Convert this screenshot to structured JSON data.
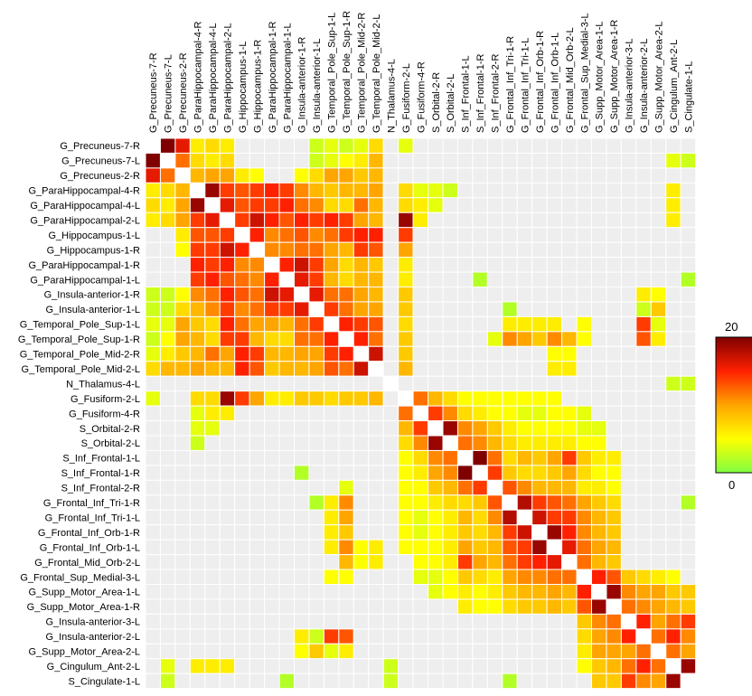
{
  "chart_data": {
    "type": "heatmap",
    "labels": [
      "G_Precuneus-7-R",
      "G_Precuneus-7-L",
      "G_Precuneus-2-R",
      "G_ParaHippocampal-4-R",
      "G_ParaHippocampal-4-L",
      "G_ParaHippocampal-2-L",
      "G_Hippocampus-1-L",
      "G_Hippocampus-1-R",
      "G_ParaHippocampal-1-R",
      "G_ParaHippocampal-1-L",
      "G_Insula-anterior-1-R",
      "G_Insula-anterior-1-L",
      "G_Temporal_Pole_Sup-1-L",
      "G_Temporal_Pole_Sup-1-R",
      "G_Temporal_Pole_Mid-2-R",
      "G_Temporal_Pole_Mid-2-L",
      "N_Thalamus-4-L",
      "G_Fusiform-2-L",
      "G_Fusiform-4-R",
      "S_Orbital-2-R",
      "S_Orbital-2-L",
      "S_Inf_Frontal-1-L",
      "S_Inf_Frontal-1-R",
      "S_Inf_Frontal-2-R",
      "G_Frontal_Inf_Tri-1-R",
      "G_Frontal_Inf_Tri-1-L",
      "G_Frontal_Inf_Orb-1-R",
      "G_Frontal_Inf_Orb-1-L",
      "G_Frontal_Mid_Orb-2-L",
      "G_Frontal_Sup_Medial-3-L",
      "G_Supp_Motor_Area-1-L",
      "G_Supp_Motor_Area-1-R",
      "G_Insula-anterior-3-L",
      "G_Insula-anterior-2-L",
      "G_Supp_Motor_Area-2-L",
      "G_Cingulum_Ant-2-L",
      "S_Cingulate-1-L"
    ],
    "colorbar": {
      "min": 0,
      "max": 20,
      "min_label": "0",
      "max_label": "20"
    },
    "colormap": [
      "#7fff3f",
      "#ffff00",
      "#ffa500",
      "#ff2000",
      "#800000"
    ],
    "diagonal_color": "#ffffff",
    "missing_color": "#eeeeee",
    "matrix": [
      [
        0,
        20,
        16,
        6,
        7,
        6,
        0,
        0,
        0,
        0,
        0,
        3,
        4,
        3,
        4,
        7,
        0,
        4,
        0,
        0,
        0,
        0,
        0,
        0,
        0,
        0,
        0,
        0,
        0,
        0,
        0,
        0,
        0,
        0,
        0,
        0,
        0
      ],
      [
        20,
        0,
        12,
        7,
        6,
        7,
        0,
        0,
        0,
        0,
        0,
        3,
        4,
        5,
        6,
        9,
        0,
        0,
        0,
        0,
        0,
        0,
        0,
        0,
        0,
        0,
        0,
        0,
        0,
        0,
        0,
        0,
        0,
        0,
        0,
        4,
        3
      ],
      [
        16,
        12,
        0,
        9,
        10,
        10,
        6,
        5,
        0,
        0,
        5,
        7,
        10,
        10,
        8,
        9,
        0,
        0,
        0,
        0,
        0,
        0,
        0,
        0,
        0,
        0,
        0,
        0,
        0,
        0,
        0,
        0,
        0,
        0,
        0,
        0,
        0
      ],
      [
        6,
        7,
        9,
        0,
        19,
        14,
        13,
        14,
        15,
        14,
        11,
        9,
        8,
        9,
        9,
        10,
        0,
        7,
        4,
        4,
        3,
        0,
        0,
        0,
        0,
        0,
        0,
        0,
        0,
        0,
        0,
        0,
        0,
        0,
        0,
        6,
        0
      ],
      [
        7,
        6,
        10,
        19,
        0,
        16,
        13,
        14,
        14,
        15,
        12,
        11,
        7,
        7,
        12,
        9,
        0,
        7,
        6,
        4,
        0,
        0,
        0,
        0,
        0,
        0,
        0,
        0,
        0,
        0,
        0,
        0,
        0,
        0,
        0,
        6,
        0
      ],
      [
        6,
        7,
        10,
        14,
        16,
        0,
        14,
        17,
        15,
        13,
        15,
        14,
        15,
        14,
        10,
        9,
        0,
        19,
        6,
        0,
        0,
        0,
        0,
        0,
        0,
        0,
        0,
        0,
        0,
        0,
        0,
        0,
        0,
        0,
        0,
        6,
        0
      ],
      [
        0,
        0,
        6,
        13,
        13,
        14,
        0,
        15,
        11,
        12,
        13,
        11,
        12,
        14,
        15,
        15,
        0,
        14,
        0,
        0,
        0,
        0,
        0,
        0,
        0,
        0,
        0,
        0,
        0,
        0,
        0,
        0,
        0,
        0,
        0,
        0,
        0
      ],
      [
        0,
        0,
        5,
        14,
        14,
        17,
        15,
        0,
        11,
        11,
        12,
        12,
        10,
        9,
        14,
        13,
        0,
        10,
        0,
        0,
        0,
        0,
        0,
        0,
        0,
        0,
        0,
        0,
        0,
        0,
        0,
        0,
        0,
        0,
        0,
        0,
        0
      ],
      [
        0,
        0,
        0,
        15,
        14,
        15,
        11,
        11,
        0,
        15,
        17,
        14,
        10,
        7,
        9,
        8,
        0,
        6,
        0,
        0,
        0,
        0,
        0,
        0,
        0,
        0,
        0,
        0,
        0,
        0,
        0,
        0,
        0,
        0,
        0,
        0,
        0
      ],
      [
        0,
        0,
        0,
        14,
        15,
        13,
        12,
        11,
        15,
        0,
        16,
        14,
        9,
        7,
        9,
        9,
        0,
        6,
        0,
        0,
        0,
        0,
        2,
        0,
        0,
        0,
        0,
        0,
        0,
        0,
        0,
        0,
        0,
        0,
        0,
        0,
        2
      ],
      [
        3,
        3,
        5,
        11,
        12,
        15,
        13,
        12,
        17,
        16,
        0,
        16,
        12,
        12,
        10,
        9,
        0,
        8,
        0,
        0,
        0,
        0,
        0,
        0,
        0,
        0,
        0,
        0,
        0,
        0,
        0,
        0,
        0,
        6,
        5,
        0,
        0
      ],
      [
        3,
        3,
        7,
        9,
        11,
        14,
        11,
        12,
        14,
        14,
        16,
        0,
        14,
        12,
        10,
        10,
        0,
        8,
        0,
        0,
        0,
        0,
        0,
        0,
        2,
        0,
        0,
        0,
        0,
        0,
        0,
        0,
        0,
        3,
        8,
        0,
        0
      ],
      [
        4,
        4,
        10,
        8,
        7,
        15,
        12,
        10,
        10,
        9,
        12,
        14,
        0,
        15,
        14,
        13,
        0,
        7,
        0,
        0,
        0,
        0,
        0,
        0,
        6,
        6,
        6,
        6,
        0,
        5,
        0,
        0,
        0,
        14,
        4,
        0,
        0
      ],
      [
        3,
        5,
        10,
        9,
        7,
        14,
        14,
        9,
        7,
        7,
        12,
        12,
        15,
        0,
        15,
        12,
        0,
        8,
        0,
        0,
        0,
        0,
        0,
        4,
        11,
        10,
        8,
        11,
        9,
        5,
        0,
        0,
        0,
        13,
        6,
        0,
        0
      ],
      [
        4,
        6,
        8,
        9,
        12,
        10,
        15,
        14,
        9,
        9,
        10,
        10,
        14,
        15,
        0,
        17,
        0,
        8,
        0,
        0,
        0,
        0,
        0,
        0,
        0,
        0,
        0,
        5,
        5,
        0,
        0,
        0,
        0,
        0,
        0,
        0,
        0
      ],
      [
        7,
        9,
        9,
        10,
        9,
        9,
        15,
        13,
        8,
        9,
        9,
        10,
        13,
        12,
        17,
        0,
        0,
        9,
        0,
        0,
        0,
        0,
        0,
        0,
        0,
        0,
        0,
        6,
        6,
        0,
        0,
        0,
        0,
        0,
        0,
        0,
        0
      ],
      [
        0,
        0,
        0,
        0,
        0,
        0,
        0,
        0,
        0,
        0,
        0,
        0,
        0,
        0,
        0,
        0,
        0,
        0,
        0,
        0,
        0,
        0,
        0,
        0,
        0,
        0,
        0,
        0,
        0,
        0,
        0,
        0,
        0,
        0,
        0,
        3,
        3
      ],
      [
        4,
        0,
        0,
        7,
        7,
        19,
        14,
        10,
        6,
        6,
        8,
        8,
        7,
        8,
        8,
        9,
        0,
        0,
        12,
        9,
        7,
        5,
        5,
        5,
        5,
        5,
        5,
        5,
        0,
        0,
        0,
        0,
        0,
        0,
        0,
        0,
        0
      ],
      [
        0,
        0,
        0,
        4,
        6,
        6,
        0,
        0,
        0,
        0,
        0,
        0,
        0,
        0,
        0,
        0,
        0,
        12,
        0,
        14,
        11,
        7,
        6,
        5,
        5,
        4,
        4,
        5,
        5,
        4,
        0,
        0,
        0,
        0,
        0,
        0,
        0
      ],
      [
        0,
        0,
        0,
        4,
        4,
        0,
        0,
        0,
        0,
        0,
        0,
        0,
        0,
        0,
        0,
        0,
        0,
        9,
        14,
        0,
        19,
        11,
        10,
        8,
        6,
        5,
        5,
        5,
        5,
        4,
        4,
        0,
        0,
        0,
        0,
        0,
        0
      ],
      [
        0,
        0,
        0,
        3,
        0,
        0,
        0,
        0,
        0,
        0,
        0,
        0,
        0,
        0,
        0,
        0,
        0,
        7,
        11,
        19,
        0,
        12,
        11,
        9,
        7,
        6,
        6,
        6,
        6,
        5,
        5,
        0,
        0,
        0,
        0,
        0,
        0
      ],
      [
        0,
        0,
        0,
        0,
        0,
        0,
        0,
        0,
        0,
        0,
        0,
        0,
        0,
        0,
        0,
        0,
        0,
        5,
        7,
        11,
        12,
        0,
        20,
        12,
        7,
        9,
        8,
        10,
        14,
        8,
        6,
        6,
        0,
        0,
        0,
        0,
        0
      ],
      [
        0,
        0,
        0,
        0,
        0,
        0,
        0,
        0,
        0,
        0,
        2,
        0,
        0,
        0,
        0,
        0,
        0,
        5,
        6,
        10,
        11,
        20,
        0,
        14,
        8,
        7,
        7,
        8,
        10,
        7,
        5,
        5,
        0,
        0,
        0,
        0,
        0
      ],
      [
        0,
        0,
        0,
        0,
        0,
        0,
        0,
        0,
        0,
        0,
        0,
        0,
        0,
        4,
        0,
        0,
        0,
        5,
        5,
        8,
        9,
        12,
        14,
        0,
        13,
        11,
        9,
        9,
        9,
        6,
        6,
        5,
        0,
        0,
        0,
        0,
        0
      ],
      [
        0,
        0,
        0,
        0,
        0,
        0,
        0,
        0,
        0,
        0,
        0,
        2,
        6,
        11,
        0,
        0,
        0,
        5,
        5,
        6,
        7,
        7,
        8,
        13,
        0,
        18,
        14,
        13,
        12,
        10,
        8,
        7,
        0,
        0,
        0,
        0,
        2
      ],
      [
        0,
        0,
        0,
        0,
        0,
        0,
        0,
        0,
        0,
        0,
        0,
        0,
        6,
        10,
        0,
        0,
        0,
        5,
        4,
        5,
        6,
        9,
        7,
        11,
        18,
        0,
        17,
        14,
        14,
        11,
        9,
        8,
        0,
        0,
        0,
        0,
        0
      ],
      [
        0,
        0,
        0,
        0,
        0,
        0,
        0,
        0,
        0,
        0,
        0,
        0,
        6,
        8,
        0,
        0,
        0,
        5,
        4,
        5,
        6,
        8,
        7,
        9,
        14,
        17,
        0,
        19,
        15,
        11,
        9,
        8,
        0,
        0,
        0,
        0,
        0
      ],
      [
        0,
        0,
        0,
        0,
        0,
        0,
        0,
        0,
        0,
        0,
        0,
        0,
        6,
        11,
        5,
        6,
        0,
        5,
        5,
        5,
        6,
        10,
        8,
        9,
        13,
        14,
        19,
        0,
        16,
        12,
        10,
        9,
        0,
        0,
        0,
        0,
        0
      ],
      [
        0,
        0,
        0,
        0,
        0,
        0,
        0,
        0,
        0,
        0,
        0,
        0,
        0,
        9,
        5,
        6,
        0,
        0,
        5,
        5,
        6,
        14,
        10,
        9,
        12,
        14,
        15,
        16,
        0,
        12,
        9,
        8,
        0,
        0,
        0,
        0,
        0
      ],
      [
        0,
        0,
        0,
        0,
        0,
        0,
        0,
        0,
        0,
        0,
        0,
        0,
        5,
        5,
        0,
        0,
        0,
        0,
        4,
        4,
        5,
        8,
        7,
        6,
        10,
        11,
        11,
        12,
        12,
        0,
        15,
        13,
        8,
        7,
        6,
        5,
        0
      ],
      [
        0,
        0,
        0,
        0,
        0,
        0,
        0,
        0,
        0,
        0,
        0,
        0,
        0,
        0,
        0,
        0,
        0,
        0,
        0,
        4,
        5,
        6,
        5,
        6,
        8,
        9,
        9,
        10,
        9,
        15,
        0,
        19,
        11,
        10,
        10,
        8,
        8
      ],
      [
        0,
        0,
        0,
        0,
        0,
        0,
        0,
        0,
        0,
        0,
        0,
        0,
        0,
        0,
        0,
        0,
        0,
        0,
        0,
        0,
        0,
        6,
        5,
        5,
        7,
        8,
        8,
        9,
        8,
        13,
        19,
        0,
        12,
        11,
        10,
        9,
        8
      ],
      [
        0,
        0,
        0,
        0,
        0,
        0,
        0,
        0,
        0,
        0,
        0,
        0,
        0,
        0,
        0,
        0,
        0,
        0,
        0,
        0,
        0,
        0,
        0,
        0,
        0,
        0,
        0,
        0,
        0,
        8,
        11,
        12,
        0,
        15,
        10,
        12,
        14
      ],
      [
        0,
        0,
        0,
        0,
        0,
        0,
        0,
        0,
        0,
        0,
        6,
        3,
        14,
        13,
        0,
        0,
        0,
        0,
        0,
        0,
        0,
        0,
        0,
        0,
        0,
        0,
        0,
        0,
        0,
        7,
        10,
        11,
        15,
        0,
        12,
        15,
        11
      ],
      [
        0,
        0,
        0,
        0,
        0,
        0,
        0,
        0,
        0,
        0,
        5,
        8,
        4,
        6,
        0,
        0,
        0,
        0,
        0,
        0,
        0,
        0,
        0,
        0,
        0,
        0,
        0,
        0,
        0,
        6,
        10,
        10,
        10,
        12,
        0,
        12,
        10
      ],
      [
        0,
        4,
        0,
        6,
        6,
        6,
        0,
        0,
        0,
        0,
        0,
        0,
        0,
        0,
        0,
        0,
        3,
        0,
        0,
        0,
        0,
        0,
        0,
        0,
        0,
        0,
        0,
        0,
        0,
        5,
        8,
        9,
        12,
        15,
        12,
        0,
        19
      ],
      [
        0,
        3,
        0,
        0,
        0,
        0,
        0,
        0,
        0,
        2,
        0,
        0,
        0,
        0,
        0,
        0,
        3,
        0,
        0,
        0,
        0,
        0,
        0,
        0,
        2,
        0,
        0,
        0,
        0,
        0,
        8,
        8,
        14,
        11,
        10,
        19,
        0
      ]
    ]
  }
}
